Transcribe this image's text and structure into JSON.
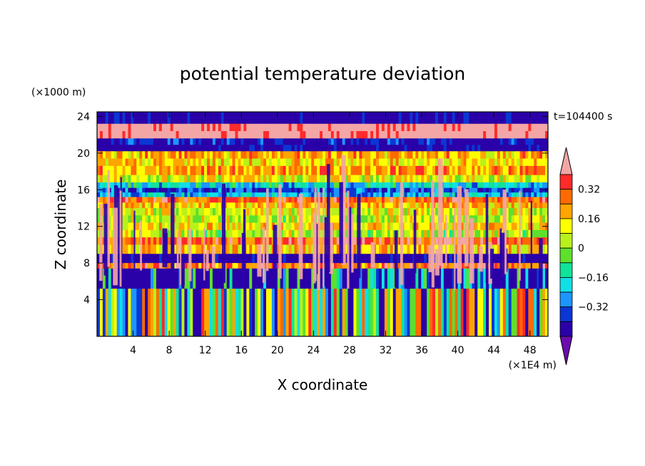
{
  "chart_data": {
    "type": "heatmap",
    "title": "potential temperature deviation",
    "xlabel": "X coordinate",
    "ylabel": "Z coordinate",
    "x_unit": "(×1E4 m)",
    "y_unit": "(×1000 m)",
    "time_label": "t=104400 s",
    "xlim": [
      0,
      50
    ],
    "ylim": [
      0,
      24.5
    ],
    "x_ticks": [
      4,
      8,
      12,
      16,
      20,
      24,
      28,
      32,
      36,
      40,
      44,
      48
    ],
    "y_ticks": [
      4,
      8,
      12,
      16,
      20,
      24
    ],
    "colorbar": {
      "levels": [
        -0.4,
        -0.32,
        -0.24,
        -0.16,
        -0.08,
        0,
        0.08,
        0.16,
        0.24,
        0.32,
        0.4
      ],
      "colors": [
        "#6a0dad",
        "#2a00a8",
        "#0b36d4",
        "#1c96ff",
        "#10e0e6",
        "#10e39a",
        "#5ee02c",
        "#b8f21a",
        "#ffff00",
        "#ffa500",
        "#ff6a00",
        "#ff2a2a",
        "#f4a6a6"
      ],
      "tick_labels": [
        "0.32",
        "0.16",
        "0",
        "−0.16",
        "−0.32"
      ],
      "tick_values": [
        0.32,
        0.16,
        0,
        -0.16,
        -0.32
      ]
    },
    "bands": [
      {
        "z": [
          23.2,
          24.5
        ],
        "value": -0.5
      },
      {
        "z": [
          22.4,
          23.2
        ],
        "value": 0.5
      },
      {
        "z": [
          21.6,
          22.4
        ],
        "value": 0.5
      },
      {
        "z": [
          20.9,
          21.6
        ],
        "value": -0.42
      },
      {
        "z": [
          20.2,
          20.9
        ],
        "value": -0.5
      },
      {
        "z": [
          19.4,
          20.2
        ],
        "value": 0.2
      },
      {
        "z": [
          18.6,
          19.4
        ],
        "value": 0.14
      },
      {
        "z": [
          17.6,
          18.6
        ],
        "value": 0.22
      },
      {
        "z": [
          16.8,
          17.6
        ],
        "value": 0.1
      },
      {
        "z": [
          16.2,
          16.8
        ],
        "value": -0.2
      },
      {
        "z": [
          15.7,
          16.2
        ],
        "value": -0.35
      },
      {
        "z": [
          15.2,
          15.7
        ],
        "value": -0.24
      },
      {
        "z": [
          14.6,
          15.2
        ],
        "value": 0.3
      },
      {
        "z": [
          14.0,
          14.6
        ],
        "value": 0.18
      },
      {
        "z": [
          13.2,
          14.0
        ],
        "value": 0.1
      },
      {
        "z": [
          12.4,
          13.2
        ],
        "value": 0.05
      },
      {
        "z": [
          11.6,
          12.4
        ],
        "value": 0.14
      },
      {
        "z": [
          10.8,
          11.6
        ],
        "value": 0.04
      },
      {
        "z": [
          10.0,
          10.8
        ],
        "value": 0.3
      },
      {
        "z": [
          9.0,
          10.0
        ],
        "value": 0.16
      },
      {
        "z": [
          8.0,
          9.0
        ],
        "value": -0.5
      },
      {
        "z": [
          7.4,
          8.0
        ],
        "value": 0.28
      },
      {
        "z": [
          5.2,
          7.4
        ],
        "value": -0.45
      },
      {
        "z": [
          0,
          5.2
        ],
        "value": -0.05
      }
    ]
  }
}
